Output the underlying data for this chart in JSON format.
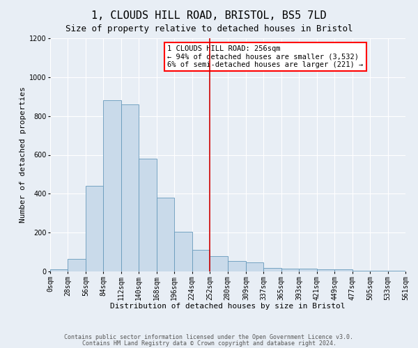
{
  "title": "1, CLOUDS HILL ROAD, BRISTOL, BS5 7LD",
  "subtitle": "Size of property relative to detached houses in Bristol",
  "xlabel": "Distribution of detached houses by size in Bristol",
  "ylabel": "Number of detached properties",
  "bar_color": "#c9daea",
  "bar_edge_color": "#6699bb",
  "background_color": "#e8eef5",
  "grid_color": "#ffffff",
  "vline_color": "#cc0000",
  "vline_x": 252,
  "bin_edges": [
    0,
    28,
    56,
    84,
    112,
    140,
    168,
    196,
    224,
    252,
    280,
    309,
    337,
    365,
    393,
    421,
    449,
    477,
    505,
    533,
    561
  ],
  "bin_heights": [
    10,
    65,
    440,
    880,
    860,
    580,
    380,
    205,
    110,
    80,
    55,
    45,
    18,
    15,
    15,
    10,
    10,
    5,
    5,
    5
  ],
  "ylim": [
    0,
    1200
  ],
  "yticks": [
    0,
    200,
    400,
    600,
    800,
    1000,
    1200
  ],
  "xtick_labels": [
    "0sqm",
    "28sqm",
    "56sqm",
    "84sqm",
    "112sqm",
    "140sqm",
    "168sqm",
    "196sqm",
    "224sqm",
    "252sqm",
    "280sqm",
    "309sqm",
    "337sqm",
    "365sqm",
    "393sqm",
    "421sqm",
    "449sqm",
    "477sqm",
    "505sqm",
    "533sqm",
    "561sqm"
  ],
  "annotation_text": "1 CLOUDS HILL ROAD: 256sqm\n← 94% of detached houses are smaller (3,532)\n6% of semi-detached houses are larger (221) →",
  "footnote_line1": "Contains HM Land Registry data © Crown copyright and database right 2024.",
  "footnote_line2": "Contains public sector information licensed under the Open Government Licence v3.0.",
  "title_fontsize": 11,
  "subtitle_fontsize": 9,
  "axis_label_fontsize": 8,
  "tick_fontsize": 7,
  "annotation_fontsize": 7.5,
  "footnote_fontsize": 6
}
